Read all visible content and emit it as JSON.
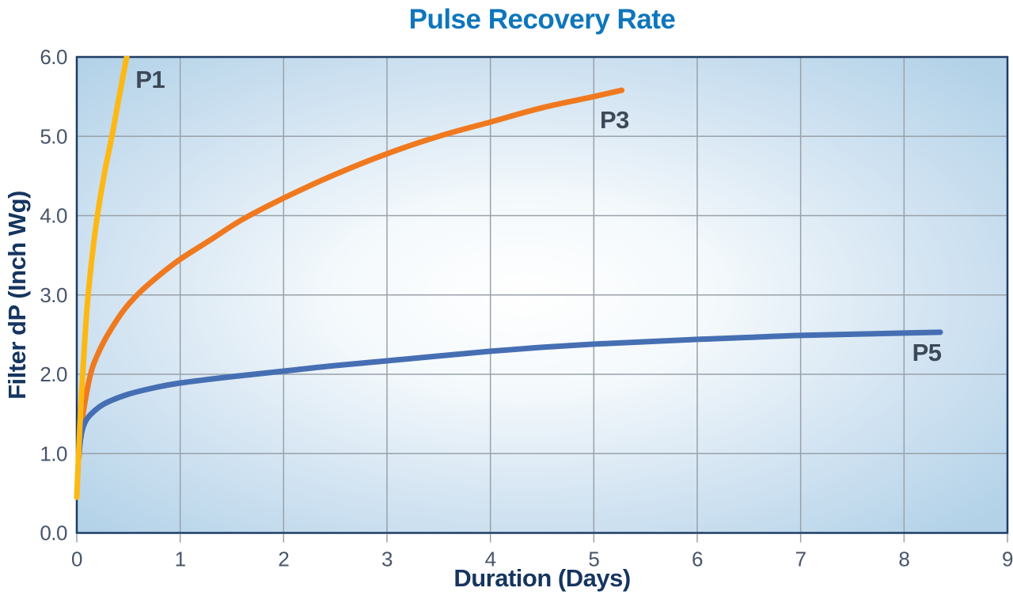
{
  "chart_data": {
    "type": "line",
    "title": "Pulse Recovery Rate",
    "xlabel": "Duration (Days)",
    "ylabel": "Filter dP (Inch Wg)",
    "xlim": [
      0,
      9
    ],
    "ylim": [
      0,
      6
    ],
    "grid": true,
    "legend_position": "inline-labels",
    "xticks": [
      {
        "value": 0,
        "label": "0"
      },
      {
        "value": 1,
        "label": "1"
      },
      {
        "value": 2,
        "label": "2"
      },
      {
        "value": 3,
        "label": "3"
      },
      {
        "value": 4,
        "label": "4"
      },
      {
        "value": 5,
        "label": "5"
      },
      {
        "value": 6,
        "label": "6"
      },
      {
        "value": 7,
        "label": "7"
      },
      {
        "value": 8,
        "label": "8"
      },
      {
        "value": 9,
        "label": "9"
      }
    ],
    "yticks": [
      {
        "value": 0,
        "label": "0.0"
      },
      {
        "value": 1,
        "label": "1.0"
      },
      {
        "value": 2,
        "label": "2.0"
      },
      {
        "value": 3,
        "label": "3.0"
      },
      {
        "value": 4,
        "label": "4.0"
      },
      {
        "value": 5,
        "label": "5.0"
      },
      {
        "value": 6,
        "label": "6.0"
      }
    ],
    "series": [
      {
        "name": "P3",
        "label": "P3",
        "color": "#f0791f",
        "label_pos": [
          5.2,
          5.21
        ],
        "points": [
          [
            0.02,
            0.95
          ],
          [
            0.05,
            1.4
          ],
          [
            0.1,
            1.8
          ],
          [
            0.15,
            2.08
          ],
          [
            0.22,
            2.3
          ],
          [
            0.3,
            2.5
          ],
          [
            0.45,
            2.8
          ],
          [
            0.6,
            3.02
          ],
          [
            0.8,
            3.25
          ],
          [
            1.0,
            3.45
          ],
          [
            1.3,
            3.7
          ],
          [
            1.6,
            3.95
          ],
          [
            2.0,
            4.22
          ],
          [
            2.5,
            4.52
          ],
          [
            3.0,
            4.78
          ],
          [
            3.5,
            5.0
          ],
          [
            4.0,
            5.18
          ],
          [
            4.5,
            5.36
          ],
          [
            5.0,
            5.5
          ],
          [
            5.27,
            5.58
          ]
        ]
      },
      {
        "name": "P5",
        "label": "P5",
        "color": "#466fb3",
        "label_pos": [
          8.22,
          2.28
        ],
        "points": [
          [
            0.02,
            1.0
          ],
          [
            0.05,
            1.28
          ],
          [
            0.1,
            1.44
          ],
          [
            0.2,
            1.57
          ],
          [
            0.3,
            1.65
          ],
          [
            0.5,
            1.75
          ],
          [
            0.75,
            1.83
          ],
          [
            1.0,
            1.89
          ],
          [
            1.5,
            1.97
          ],
          [
            2.0,
            2.04
          ],
          [
            2.5,
            2.11
          ],
          [
            3.0,
            2.17
          ],
          [
            3.5,
            2.23
          ],
          [
            4.0,
            2.29
          ],
          [
            4.5,
            2.34
          ],
          [
            5.0,
            2.38
          ],
          [
            5.5,
            2.41
          ],
          [
            6.0,
            2.44
          ],
          [
            6.5,
            2.465
          ],
          [
            7.0,
            2.49
          ],
          [
            7.5,
            2.505
          ],
          [
            8.0,
            2.52
          ],
          [
            8.35,
            2.53
          ]
        ]
      },
      {
        "name": "P1",
        "label": "P1",
        "color": "#fdb813",
        "label_pos": [
          0.71,
          5.72
        ],
        "points": [
          [
            0.0,
            0.45
          ],
          [
            0.03,
            1.35
          ],
          [
            0.06,
            2.05
          ],
          [
            0.1,
            2.85
          ],
          [
            0.15,
            3.5
          ],
          [
            0.2,
            4.0
          ],
          [
            0.27,
            4.55
          ],
          [
            0.34,
            5.0
          ],
          [
            0.41,
            5.5
          ],
          [
            0.49,
            6.05
          ]
        ]
      }
    ],
    "style": {
      "title_color": "#0e76bc",
      "axis_title_color": "#16355f",
      "tick_label_color": "#475569",
      "grid_color": "#99a1a9",
      "border_color": "#1f3c63",
      "series_label_color": "#3d4957",
      "plot_bg_stops": [
        [
          "0%",
          "#ffffff"
        ],
        [
          "30%",
          "#f4f9fc"
        ],
        [
          "65%",
          "#d3e4f2"
        ],
        [
          "100%",
          "#b3d2e8"
        ]
      ]
    }
  }
}
